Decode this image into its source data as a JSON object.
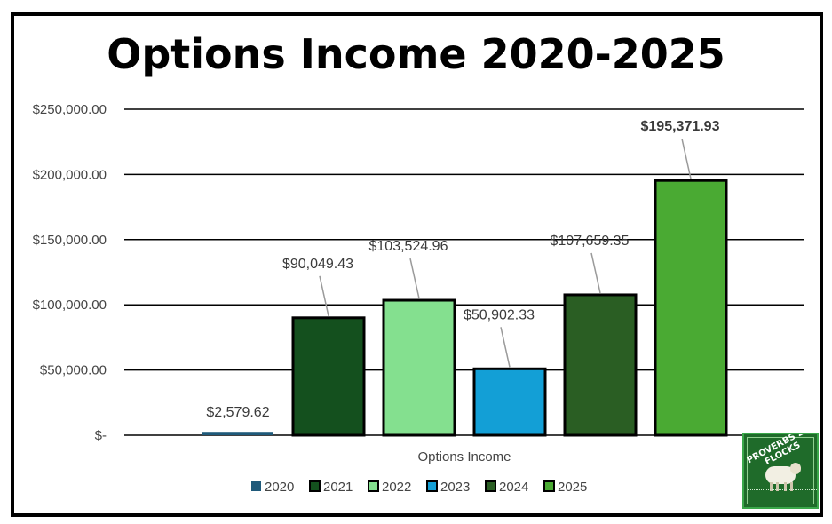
{
  "chart_data": {
    "type": "bar",
    "title": "Options Income 2020-2025",
    "xlabel": "Options Income",
    "ylabel": "",
    "categories": [
      "Options Income"
    ],
    "ylim": [
      0,
      250000
    ],
    "yticks": [
      0,
      50000,
      100000,
      150000,
      200000,
      250000
    ],
    "ytick_labels": [
      "$-",
      "$50,000.00",
      "$100,000.00",
      "$150,000.00",
      "$200,000.00",
      "$250,000.00"
    ],
    "grid": true,
    "legend_position": "bottom",
    "series": [
      {
        "name": "2020",
        "values": [
          2579.62
        ],
        "label": "$2,579.62",
        "color": "#1f5a7a",
        "label_bold": false
      },
      {
        "name": "2021",
        "values": [
          90049.43
        ],
        "label": "$90,049.43",
        "color": "#14501e",
        "label_bold": false
      },
      {
        "name": "2022",
        "values": [
          103524.96
        ],
        "label": "$103,524.96",
        "color": "#84e08f",
        "label_bold": false
      },
      {
        "name": "2023",
        "values": [
          50902.33
        ],
        "label": "$50,902.33",
        "color": "#139fd6",
        "label_bold": false
      },
      {
        "name": "2024",
        "values": [
          107659.35
        ],
        "label": "$107,659.35",
        "color": "#2a5e23",
        "label_bold": false
      },
      {
        "name": "2025",
        "values": [
          195371.93
        ],
        "label": "$195,371.93",
        "color": "#4aaa33",
        "label_bold": true
      }
    ]
  },
  "logo": {
    "text": "PROVERBS 27 FLOCKS",
    "icon": "sheep-icon"
  }
}
